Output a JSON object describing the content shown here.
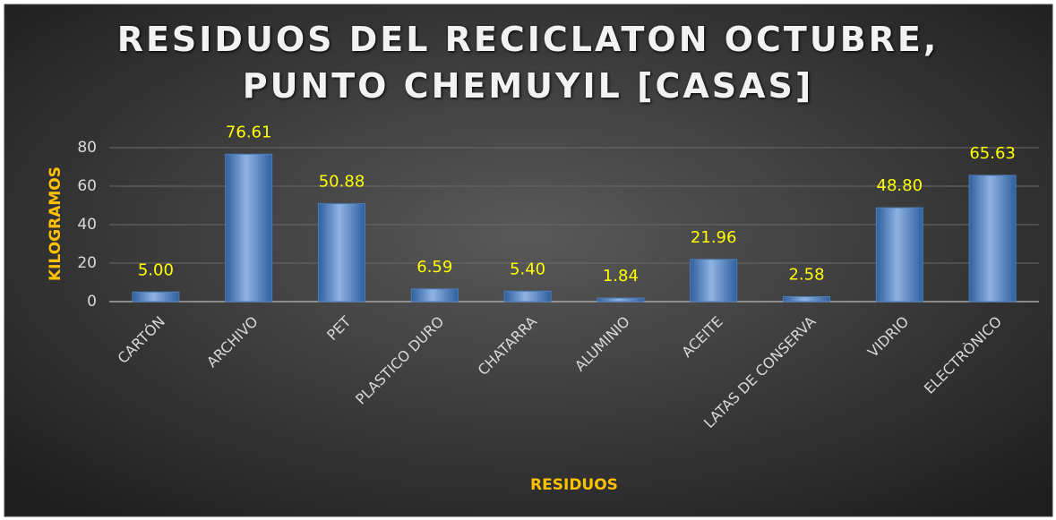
{
  "chart_data": {
    "type": "bar",
    "title": "RESIDUOS DEL RECICLATON OCTUBRE, PUNTO CHEMUYIL [CASAS]",
    "x_label": "RESIDUOS",
    "y_label": "KILOGRAMOS",
    "categories": [
      "CARTÓN",
      "ARCHIVO",
      "PET",
      "PLASTICO DURO",
      "CHATARRA",
      "ALUMINIO",
      "ACEITE",
      "LATAS DE CONSERVA",
      "VIDRIO",
      "ELECTRÒNICO"
    ],
    "values": [
      5,
      76.61,
      50.88,
      6.59,
      5.4,
      1.84,
      21.96,
      2.58,
      48.8,
      65.63
    ],
    "value_labels": [
      "5.00",
      "76.61",
      "50.88",
      "6.59",
      "5.40",
      "1.84",
      "21.96",
      "2.58",
      "48.80",
      "65.63"
    ],
    "color": "#4a7ebb",
    "ylim": [
      0,
      80
    ],
    "yticks": [
      0,
      20,
      40,
      60,
      80
    ],
    "grid": true
  }
}
